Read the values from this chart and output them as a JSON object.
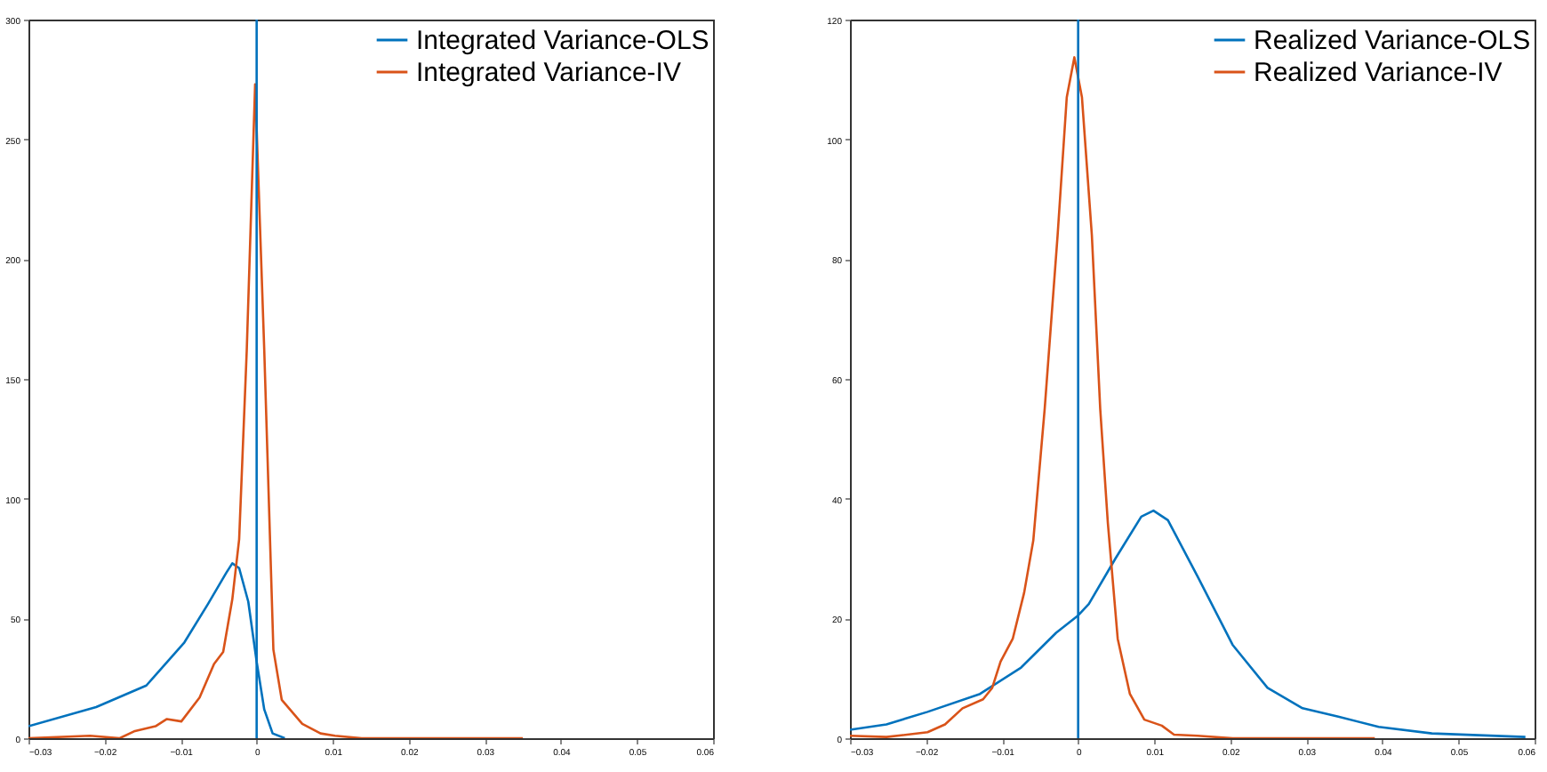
{
  "chart_data": [
    {
      "type": "line",
      "xlim": [
        -0.03,
        0.06
      ],
      "xticks": [
        -0.03,
        -0.02,
        -0.01,
        0,
        0.01,
        0.02,
        0.03,
        0.04,
        0.05,
        0.06
      ],
      "ylim": [
        0,
        300
      ],
      "yticks": [
        0,
        50,
        100,
        150,
        200,
        250,
        300
      ],
      "grid": false,
      "legend": "top right",
      "line_style": "solid",
      "marker": "none",
      "ref_lines": [
        {
          "axis": "x",
          "value": 0,
          "color": "#0072bd"
        }
      ],
      "series": [
        {
          "name": "Integrated Variance-OLS",
          "color": "#0072bd",
          "x": [
            -0.03,
            -0.0211,
            -0.0145,
            -0.0095,
            -0.0064,
            -0.004,
            -0.0032,
            -0.0023,
            -0.0011,
            0,
            0.001,
            0.0021,
            0.0037
          ],
          "values": [
            5,
            13,
            22,
            40,
            56,
            69,
            73,
            71,
            57,
            32,
            12,
            2,
            0
          ]
        },
        {
          "name": "Integrated Variance-IV",
          "color": "#d95319",
          "x": [
            -0.03,
            -0.0219,
            -0.018,
            -0.016,
            -0.0133,
            -0.0118,
            -0.0099,
            -0.0075,
            -0.0056,
            -0.0044,
            -0.0032,
            -0.0023,
            -0.0013,
            -0.0002,
            0.001,
            0.0022,
            0.0033,
            0.006,
            0.0084,
            0.0103,
            0.0138,
            0.035
          ],
          "values": [
            0,
            1,
            0,
            3,
            5,
            8,
            7,
            17,
            31,
            36,
            58,
            83,
            162,
            273,
            162,
            37,
            16,
            6,
            2,
            1,
            0,
            0
          ]
        }
      ]
    },
    {
      "type": "line",
      "xlim": [
        -0.03,
        0.06
      ],
      "xticks": [
        -0.03,
        -0.02,
        -0.01,
        0,
        0.01,
        0.02,
        0.03,
        0.04,
        0.05,
        0.06
      ],
      "ylim": [
        0,
        120
      ],
      "yticks": [
        0,
        20,
        40,
        60,
        80,
        100,
        120
      ],
      "grid": false,
      "legend": "top right",
      "line_style": "solid",
      "marker": "none",
      "ref_lines": [
        {
          "axis": "x",
          "value": 0,
          "color": "#0072bd"
        }
      ],
      "series": [
        {
          "name": "Realized Variance-OLS",
          "color": "#0072bd",
          "x": [
            -0.03,
            -0.0252,
            -0.0198,
            -0.0129,
            -0.0075,
            -0.0029,
            0,
            0.0014,
            0.0049,
            0.0083,
            0.0099,
            0.0118,
            0.0157,
            0.0203,
            0.0249,
            0.0295,
            0.0342,
            0.0395,
            0.0465,
            0.0588
          ],
          "values": [
            1.4,
            2.3,
            4.4,
            7.4,
            11.8,
            17.6,
            20.5,
            22.4,
            30,
            37,
            38,
            36.4,
            27,
            15.6,
            8.4,
            5,
            3.6,
            1.9,
            0.8,
            0.2
          ]
        },
        {
          "name": "Realized Variance-IV",
          "color": "#d95319",
          "x": [
            -0.03,
            -0.0252,
            -0.0198,
            -0.0175,
            -0.0152,
            -0.0125,
            -0.0113,
            -0.0102,
            -0.0086,
            -0.0071,
            -0.0059,
            -0.0044,
            -0.0027,
            -0.0015,
            -0.0005,
            0.0005,
            0.0018,
            0.0029,
            0.0039,
            0.0052,
            0.0068,
            0.0087,
            0.011,
            0.0126,
            0.0157,
            0.0203,
            0.039
          ],
          "values": [
            0.4,
            0.2,
            1,
            2.3,
            5,
            6.5,
            8.4,
            12.8,
            16.6,
            24.3,
            33,
            55,
            84,
            107,
            113.7,
            107,
            84,
            55,
            36,
            16.6,
            7.4,
            3.1,
            2.1,
            0.6,
            0.4,
            0,
            0
          ]
        }
      ]
    }
  ]
}
